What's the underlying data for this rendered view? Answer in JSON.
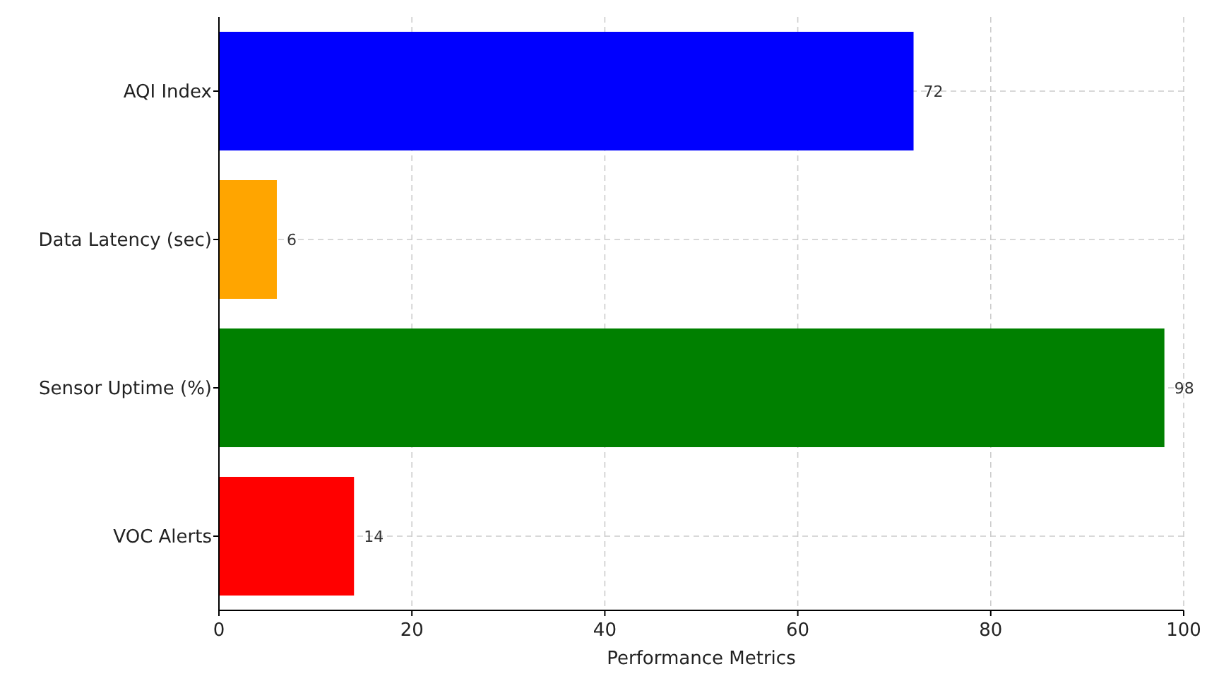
{
  "chart_data": {
    "type": "bar",
    "orientation": "horizontal",
    "xlabel": "Performance Metrics",
    "categories": [
      "AQI Index",
      "Data Latency (sec)",
      "Sensor Uptime (%)",
      "VOC Alerts"
    ],
    "values": [
      72,
      6,
      98,
      14
    ],
    "colors": [
      "#0000ff",
      "#ffa500",
      "#008000",
      "#ff0000"
    ],
    "xlim": [
      0,
      100
    ],
    "xticks": [
      0,
      20,
      40,
      60,
      80,
      100
    ],
    "grid": true,
    "data_labels": true
  }
}
